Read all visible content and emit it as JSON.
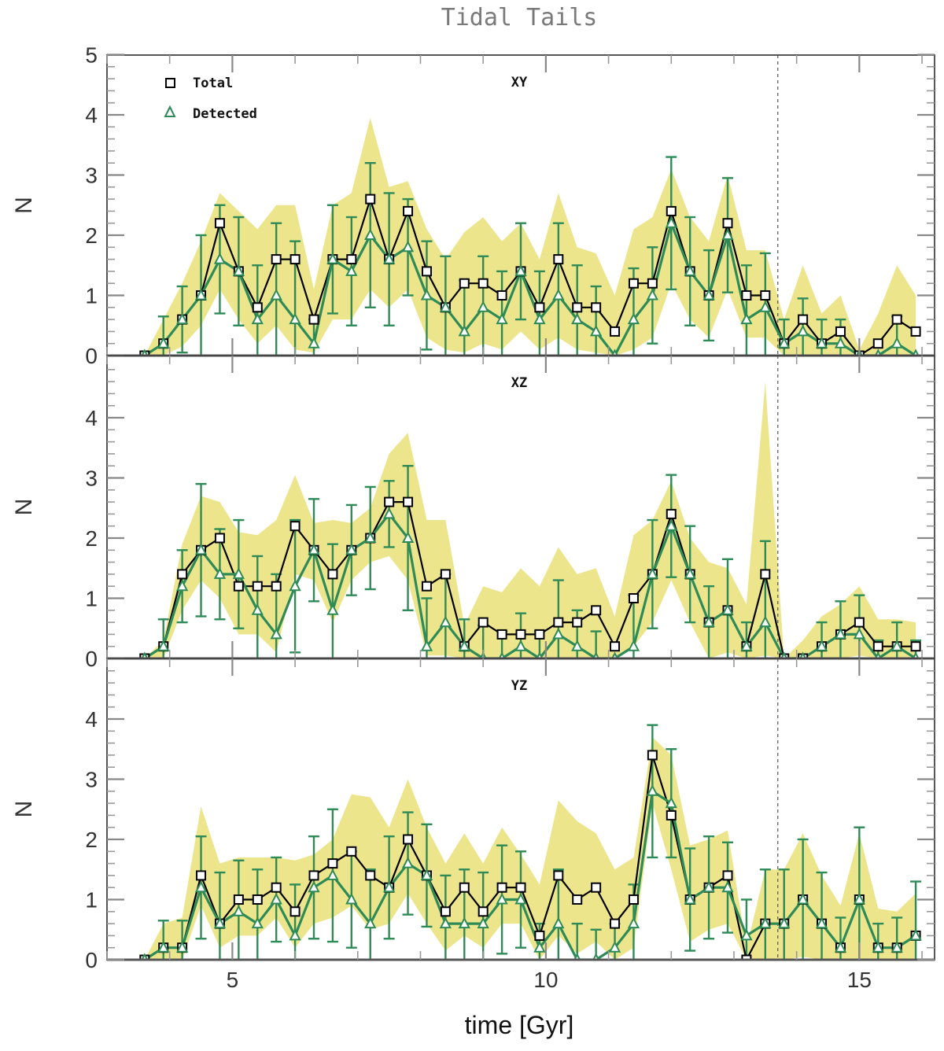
{
  "chart_data": {
    "type": "line",
    "title": "Tidal Tails",
    "xlabel": "time [Gyr]",
    "ylabel": "N",
    "xlim": [
      3.0,
      16.2
    ],
    "x_ticks": [
      5,
      10,
      15
    ],
    "x_tick_labels": [
      "5",
      "10",
      "15"
    ],
    "marker_line_x": 13.7,
    "legend": [
      "Total",
      "Detected"
    ],
    "colors": {
      "total": "#000000",
      "detected": "#2e8b57",
      "band": "#ede58c",
      "axis": "#444444"
    },
    "x": [
      3.6,
      3.9,
      4.2,
      4.5,
      4.8,
      5.1,
      5.4,
      5.7,
      6.0,
      6.3,
      6.6,
      6.9,
      7.2,
      7.5,
      7.8,
      8.1,
      8.4,
      8.7,
      9.0,
      9.3,
      9.6,
      9.9,
      10.2,
      10.5,
      10.8,
      11.1,
      11.4,
      11.7,
      12.0,
      12.3,
      12.6,
      12.9,
      13.2,
      13.5,
      13.8,
      14.1,
      14.4,
      14.7,
      15.0,
      15.3,
      15.6,
      15.9
    ],
    "panels": [
      {
        "label": "XY",
        "ylim": [
          0,
          5
        ],
        "y_ticks": [
          0,
          1,
          2,
          3,
          4,
          5
        ],
        "y_tick_labels": [
          "0",
          "1",
          "2",
          "3",
          "4",
          "5"
        ],
        "total": [
          0,
          0.2,
          0.6,
          1.0,
          2.2,
          1.4,
          0.8,
          1.6,
          1.6,
          0.6,
          1.6,
          1.6,
          2.6,
          1.6,
          2.4,
          1.4,
          0.8,
          1.2,
          1.2,
          1.0,
          1.4,
          0.8,
          1.6,
          0.8,
          0.8,
          0.4,
          1.2,
          1.2,
          2.4,
          1.4,
          1.0,
          2.2,
          1.0,
          1.0,
          0.2,
          0.6,
          0.2,
          0.4,
          0.0,
          0.2,
          0.6,
          0.4
        ],
        "detected": [
          0,
          0.2,
          0.6,
          1.0,
          1.6,
          1.4,
          0.6,
          1.0,
          0.6,
          0.2,
          1.6,
          1.4,
          2.0,
          1.6,
          1.8,
          1.0,
          0.8,
          0.4,
          0.8,
          0.6,
          1.4,
          0.6,
          1.0,
          0.6,
          0.4,
          0.0,
          0.6,
          1.0,
          2.2,
          1.4,
          1.0,
          2.0,
          0.6,
          0.8,
          0.2,
          0.4,
          0.2,
          0.2,
          0.0,
          0.0,
          0.2,
          0.0
        ],
        "err": [
          0,
          0.45,
          0.55,
          1.0,
          0.9,
          0.9,
          0.9,
          1.2,
          1.3,
          0.4,
          0.9,
          0.9,
          1.2,
          1.1,
          0.8,
          0.9,
          0.85,
          0.85,
          0.85,
          0.8,
          0.8,
          0.8,
          1.2,
          0.9,
          0.75,
          0,
          0.85,
          0.8,
          1.1,
          0.9,
          0.75,
          0.95,
          0.9,
          0.9,
          0.4,
          0.55,
          0.4,
          0.4,
          0,
          0,
          0.45,
          0
        ],
        "band_upper": [
          0,
          0.6,
          1.2,
          1.9,
          2.7,
          2.4,
          2.1,
          2.5,
          2.5,
          1.1,
          2.5,
          2.7,
          3.95,
          2.8,
          2.9,
          2.1,
          1.6,
          2.05,
          2.3,
          1.9,
          2.2,
          1.6,
          2.7,
          1.8,
          1.7,
          1.0,
          2.1,
          2.3,
          3.1,
          2.3,
          1.9,
          3.0,
          1.75,
          1.75,
          0.6,
          1.5,
          0.7,
          1.0,
          0.1,
          0.7,
          1.5,
          1.0
        ],
        "band_lower": [
          0,
          0,
          0.15,
          0.5,
          1.1,
          0.6,
          0.2,
          0.5,
          0.1,
          0.05,
          0.6,
          0.6,
          1.1,
          0.8,
          1.1,
          0.3,
          0.1,
          0.05,
          0.2,
          0.1,
          0.4,
          0.1,
          0.3,
          0.1,
          0.05,
          0,
          0.1,
          0.3,
          1.2,
          0.6,
          0.3,
          1.1,
          0.3,
          0.3,
          0,
          0,
          0,
          0,
          0,
          0,
          0,
          0
        ]
      },
      {
        "label": "XZ",
        "ylim": [
          0,
          5
        ],
        "y_ticks": [
          0,
          1,
          2,
          3,
          4
        ],
        "y_tick_labels": [
          "0",
          "1",
          "2",
          "3",
          "4"
        ],
        "total": [
          0,
          0.2,
          1.4,
          1.8,
          2.0,
          1.2,
          1.2,
          1.2,
          2.2,
          1.8,
          1.4,
          1.8,
          2.0,
          2.6,
          2.6,
          1.2,
          1.4,
          0.2,
          0.6,
          0.4,
          0.4,
          0.4,
          0.6,
          0.6,
          0.8,
          0.2,
          1.0,
          1.4,
          2.4,
          1.4,
          0.6,
          0.8,
          0.2,
          1.4,
          0.0,
          0.0,
          0.2,
          0.4,
          0.6,
          0.2,
          0.2,
          0.2
        ],
        "detected": [
          0,
          0.2,
          1.2,
          1.8,
          1.4,
          1.4,
          0.8,
          0.4,
          1.2,
          1.8,
          0.8,
          1.8,
          2.0,
          2.4,
          2.0,
          0.2,
          0.6,
          0.2,
          0.0,
          0.0,
          0.2,
          0.0,
          0.4,
          0.2,
          0.0,
          0.0,
          0.2,
          1.4,
          2.2,
          1.4,
          0.6,
          0.8,
          0.2,
          0.6,
          0.0,
          0.0,
          0.2,
          0.4,
          0.4,
          0.0,
          0.2,
          0.0
        ],
        "err": [
          0,
          0.45,
          0.6,
          1.1,
          0.75,
          0.9,
          0.9,
          1.0,
          1.1,
          0.85,
          1.1,
          0.75,
          0.85,
          0.55,
          1.2,
          0.8,
          0.8,
          0.45,
          0.55,
          0.45,
          0.55,
          0.45,
          0.9,
          0.6,
          0.45,
          0,
          0.85,
          0.9,
          0.85,
          0.8,
          0.6,
          0.85,
          0.4,
          1.35,
          0,
          0,
          0.4,
          0.55,
          0.65,
          0.3,
          0.4,
          0.3
        ],
        "band_upper": [
          0,
          0.3,
          1.9,
          2.7,
          2.6,
          2.1,
          2.05,
          2.3,
          3.05,
          2.25,
          2.3,
          2.25,
          2.5,
          3.4,
          3.75,
          2.3,
          2.3,
          0.55,
          1.2,
          1.1,
          1.5,
          1.2,
          1.85,
          1.4,
          1.5,
          0.7,
          2.05,
          2.3,
          2.95,
          2.0,
          1.6,
          1.5,
          0.9,
          4.6,
          0,
          0.3,
          0.7,
          0.9,
          1.2,
          0.65,
          0.65,
          0.6
        ],
        "band_lower": [
          0,
          0,
          0.8,
          1.3,
          1.0,
          0.4,
          0.4,
          0.1,
          1.4,
          1.3,
          0.6,
          1.3,
          1.6,
          1.7,
          1.3,
          0.05,
          0.05,
          0,
          0,
          0,
          0,
          0,
          0,
          0,
          0,
          0,
          0.2,
          0.6,
          1.3,
          0.6,
          0,
          0.1,
          0,
          0.05,
          0,
          0,
          0,
          0,
          0.05,
          0,
          0,
          0
        ]
      },
      {
        "label": "YZ",
        "ylim": [
          0,
          5
        ],
        "y_ticks": [
          0,
          1,
          2,
          3,
          4
        ],
        "y_tick_labels": [
          "0",
          "1",
          "2",
          "3",
          "4"
        ],
        "total": [
          0,
          0.2,
          0.2,
          1.4,
          0.6,
          1.0,
          1.0,
          1.2,
          0.8,
          1.4,
          1.6,
          1.8,
          1.4,
          1.2,
          2.0,
          1.4,
          0.8,
          1.2,
          0.8,
          1.2,
          1.2,
          0.4,
          1.4,
          1.0,
          1.2,
          0.6,
          1.0,
          3.4,
          2.4,
          1.0,
          1.2,
          1.4,
          0.0,
          0.6,
          0.6,
          1.0,
          0.6,
          0.2,
          1.0,
          0.2,
          0.2,
          0.4
        ],
        "detected": [
          0,
          0.2,
          0.2,
          1.2,
          0.6,
          0.8,
          0.6,
          1.0,
          0.4,
          1.2,
          1.4,
          1.0,
          0.6,
          1.2,
          1.6,
          1.4,
          0.6,
          0.6,
          0.6,
          1.0,
          1.0,
          0.2,
          0.6,
          0.0,
          0.0,
          0.2,
          0.6,
          2.8,
          2.6,
          1.0,
          1.2,
          1.2,
          0.4,
          0.6,
          0.6,
          1.0,
          0.6,
          0.2,
          1.0,
          0.2,
          0.2,
          0.4
        ],
        "err": [
          0,
          0.45,
          0.45,
          0.85,
          0.85,
          0.85,
          0.9,
          0.7,
          0.85,
          0.85,
          1.1,
          0.8,
          0.9,
          0.85,
          0.85,
          0.85,
          0.8,
          0.9,
          0.85,
          0.9,
          0.8,
          0.4,
          0.9,
          0.6,
          0.5,
          0.4,
          0.65,
          1.1,
          0.9,
          0.85,
          0.85,
          0.75,
          0.6,
          0.9,
          0.9,
          1.0,
          0.85,
          0.5,
          1.2,
          0.4,
          0.5,
          0.9
        ],
        "band_upper": [
          0,
          0.6,
          0.7,
          2.55,
          1.6,
          1.7,
          1.7,
          1.7,
          1.65,
          1.75,
          2.0,
          2.75,
          2.7,
          2.2,
          3.0,
          2.2,
          1.6,
          2.1,
          1.6,
          2.2,
          1.75,
          1.25,
          2.65,
          2.3,
          2.1,
          1.5,
          1.7,
          3.7,
          3.4,
          1.9,
          2.0,
          2.15,
          0.2,
          1.5,
          1.5,
          2.1,
          1.4,
          0.9,
          2.1,
          0.85,
          0.8,
          1.1
        ],
        "band_lower": [
          0,
          0,
          0,
          0.9,
          0.2,
          0.4,
          0.4,
          0.7,
          0.2,
          0.6,
          0.7,
          0.9,
          0.5,
          0.6,
          1.1,
          0.6,
          0.15,
          0.4,
          0.2,
          0.6,
          0.6,
          0,
          0.4,
          0.1,
          0.3,
          0,
          0.2,
          2.6,
          1.5,
          0.3,
          0.5,
          0.6,
          0,
          0,
          0,
          0.05,
          0,
          0,
          0,
          0,
          0,
          0
        ]
      }
    ]
  }
}
